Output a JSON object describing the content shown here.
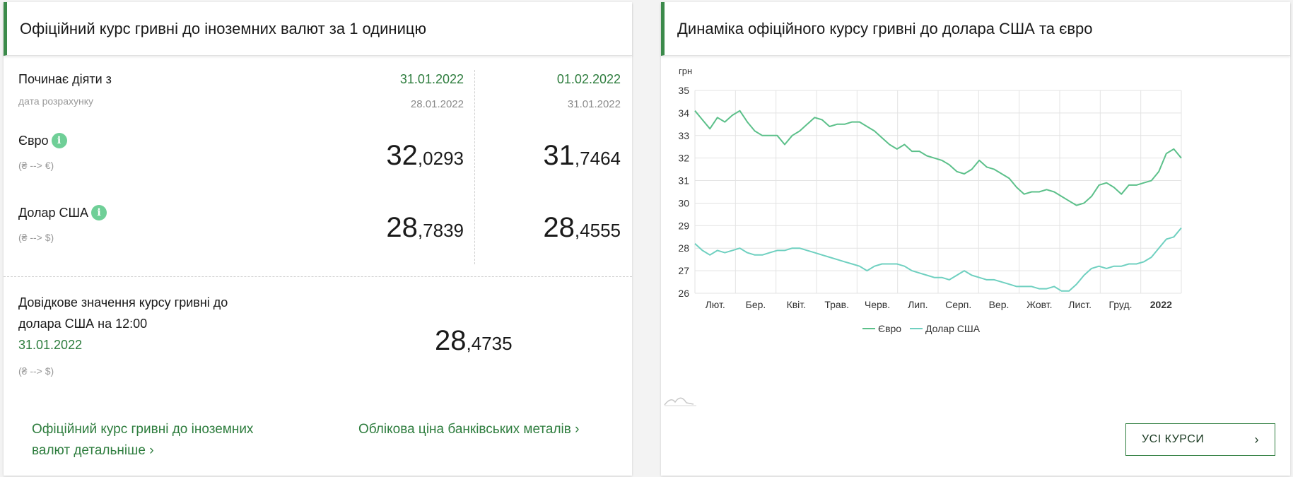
{
  "left": {
    "title": "Офіційний курс гривні до іноземних валют за 1 одиницю",
    "starts_label": "Починає діяти з",
    "calc_date_label": "дата розрахунку",
    "col1": {
      "date": "31.01.2022",
      "calc_date": "28.01.2022"
    },
    "col2": {
      "date": "01.02.2022",
      "calc_date": "31.01.2022"
    },
    "rates": [
      {
        "name": "Євро",
        "direction": "(₴ --> €)",
        "col1_int": "32",
        "col1_frac": ",0293",
        "col2_int": "31",
        "col2_frac": ",7464"
      },
      {
        "name": "Долар США",
        "direction": "(₴ --> $)",
        "col1_int": "28",
        "col1_frac": ",7839",
        "col2_int": "28",
        "col2_frac": ",4555"
      }
    ],
    "info_glyph": "i",
    "reference": {
      "line1": "Довідкове значення курсу гривні до",
      "line2": "долара США на 12:00",
      "date": "31.01.2022",
      "direction": "(₴ --> $)",
      "int": "28",
      "frac": ",4735"
    },
    "links": {
      "detailed_line1": "Офіційний курс гривні до іноземних",
      "detailed_line2": "валют детальніше",
      "metals": "Облікова ціна банківських металів",
      "chevron": "›"
    }
  },
  "right": {
    "title": "Динаміка офіційного курсу гривні до долара США та євро",
    "button_label": "УСІ КУРСИ",
    "button_chevron": "›"
  },
  "chart_data": {
    "type": "line",
    "ylabel": "грн",
    "ylim": [
      26,
      35
    ],
    "yticks": [
      26,
      27,
      28,
      29,
      30,
      31,
      32,
      33,
      34,
      35
    ],
    "month_labels": [
      "Лют.",
      "Бер.",
      "Квіт.",
      "Трав.",
      "Черв.",
      "Лип.",
      "Серп.",
      "Вер.",
      "Жовт.",
      "Лист.",
      "Груд.",
      "2022"
    ],
    "grid": true,
    "legend": "bottom",
    "series": [
      {
        "name": "Євро",
        "color": "#5cc08a",
        "values": [
          34.1,
          33.7,
          33.3,
          33.8,
          33.6,
          33.9,
          34.1,
          33.6,
          33.2,
          33.0,
          33.0,
          33.0,
          32.6,
          33.0,
          33.2,
          33.5,
          33.8,
          33.7,
          33.4,
          33.5,
          33.5,
          33.6,
          33.6,
          33.4,
          33.2,
          32.9,
          32.6,
          32.4,
          32.6,
          32.3,
          32.3,
          32.1,
          32.0,
          31.9,
          31.7,
          31.4,
          31.3,
          31.5,
          31.9,
          31.6,
          31.5,
          31.3,
          31.1,
          30.7,
          30.4,
          30.5,
          30.5,
          30.6,
          30.5,
          30.3,
          30.1,
          29.9,
          30.0,
          30.3,
          30.8,
          30.9,
          30.7,
          30.4,
          30.8,
          30.8,
          30.9,
          31.0,
          31.4,
          32.2,
          32.4,
          32.0
        ]
      },
      {
        "name": "Долар США",
        "color": "#6fd0c0",
        "values": [
          28.2,
          27.9,
          27.7,
          27.9,
          27.8,
          27.9,
          28.0,
          27.8,
          27.7,
          27.7,
          27.8,
          27.9,
          27.9,
          28.0,
          28.0,
          27.9,
          27.8,
          27.7,
          27.6,
          27.5,
          27.4,
          27.3,
          27.2,
          27.0,
          27.2,
          27.3,
          27.3,
          27.3,
          27.2,
          27.0,
          26.9,
          26.8,
          26.7,
          26.7,
          26.6,
          26.8,
          27.0,
          26.8,
          26.7,
          26.6,
          26.6,
          26.5,
          26.4,
          26.3,
          26.3,
          26.3,
          26.2,
          26.2,
          26.3,
          26.1,
          26.1,
          26.4,
          26.8,
          27.1,
          27.2,
          27.1,
          27.2,
          27.2,
          27.3,
          27.3,
          27.4,
          27.6,
          28.0,
          28.4,
          28.5,
          28.9
        ]
      }
    ]
  }
}
